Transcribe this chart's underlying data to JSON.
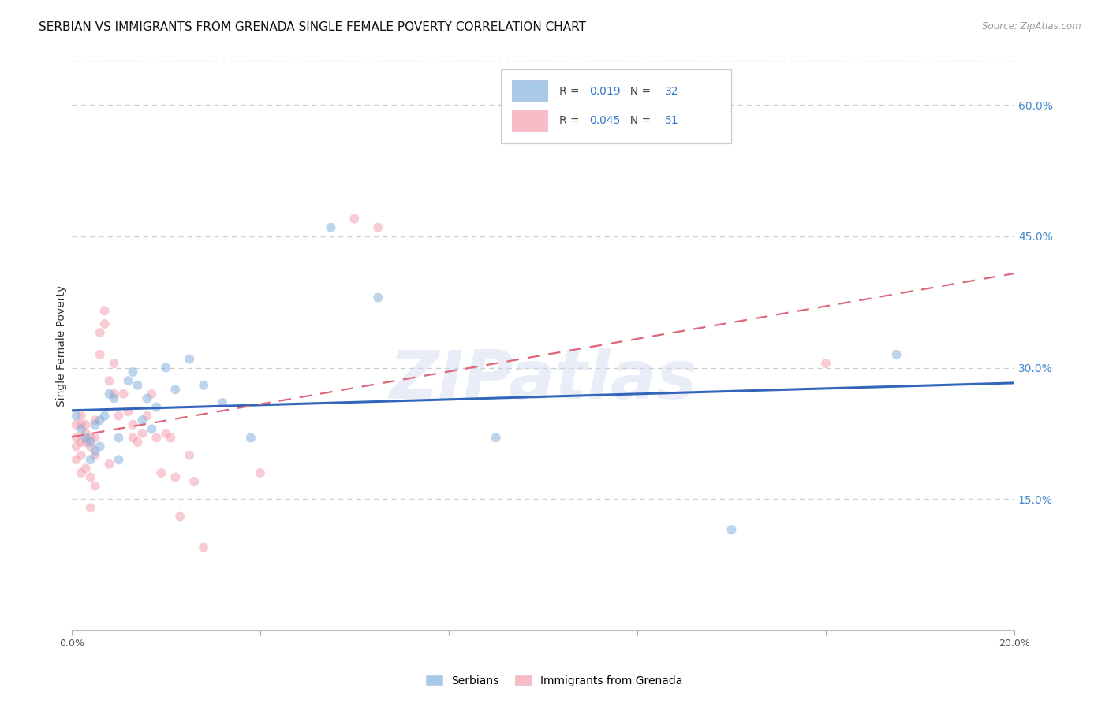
{
  "title": "SERBIAN VS IMMIGRANTS FROM GRENADA SINGLE FEMALE POVERTY CORRELATION CHART",
  "source": "Source: ZipAtlas.com",
  "ylabel": "Single Female Poverty",
  "xlim": [
    0.0,
    0.2
  ],
  "ylim": [
    0.0,
    0.65
  ],
  "xtick_positions": [
    0.0,
    0.04,
    0.08,
    0.12,
    0.16,
    0.2
  ],
  "xtick_labels": [
    "0.0%",
    "",
    "",
    "",
    "",
    "20.0%"
  ],
  "ytick_positions": [
    0.15,
    0.3,
    0.45,
    0.6
  ],
  "ytick_labels": [
    "15.0%",
    "30.0%",
    "45.0%",
    "60.0%"
  ],
  "watermark": "ZIPatlas",
  "serbian_R": "0.019",
  "serbian_N": "32",
  "grenada_R": "0.045",
  "grenada_N": "51",
  "serbian_x": [
    0.001,
    0.002,
    0.003,
    0.004,
    0.004,
    0.005,
    0.005,
    0.006,
    0.006,
    0.007,
    0.008,
    0.009,
    0.01,
    0.01,
    0.012,
    0.013,
    0.014,
    0.015,
    0.016,
    0.017,
    0.018,
    0.02,
    0.022,
    0.025,
    0.028,
    0.032,
    0.038,
    0.055,
    0.065,
    0.09,
    0.14,
    0.175
  ],
  "serbian_y": [
    0.245,
    0.23,
    0.22,
    0.215,
    0.195,
    0.235,
    0.205,
    0.24,
    0.21,
    0.245,
    0.27,
    0.265,
    0.22,
    0.195,
    0.285,
    0.295,
    0.28,
    0.24,
    0.265,
    0.23,
    0.255,
    0.3,
    0.275,
    0.31,
    0.28,
    0.26,
    0.22,
    0.46,
    0.38,
    0.22,
    0.115,
    0.315
  ],
  "grenada_x": [
    0.001,
    0.001,
    0.001,
    0.001,
    0.002,
    0.002,
    0.002,
    0.002,
    0.002,
    0.003,
    0.003,
    0.003,
    0.003,
    0.004,
    0.004,
    0.004,
    0.004,
    0.005,
    0.005,
    0.005,
    0.005,
    0.006,
    0.006,
    0.007,
    0.007,
    0.008,
    0.008,
    0.009,
    0.009,
    0.01,
    0.011,
    0.012,
    0.013,
    0.013,
    0.014,
    0.015,
    0.016,
    0.017,
    0.018,
    0.019,
    0.02,
    0.021,
    0.022,
    0.023,
    0.025,
    0.026,
    0.028,
    0.04,
    0.06,
    0.065,
    0.16
  ],
  "grenada_y": [
    0.235,
    0.22,
    0.21,
    0.195,
    0.245,
    0.235,
    0.215,
    0.2,
    0.18,
    0.235,
    0.225,
    0.215,
    0.185,
    0.22,
    0.21,
    0.175,
    0.14,
    0.24,
    0.22,
    0.2,
    0.165,
    0.34,
    0.315,
    0.365,
    0.35,
    0.285,
    0.19,
    0.305,
    0.27,
    0.245,
    0.27,
    0.25,
    0.235,
    0.22,
    0.215,
    0.225,
    0.245,
    0.27,
    0.22,
    0.18,
    0.225,
    0.22,
    0.175,
    0.13,
    0.2,
    0.17,
    0.095,
    0.18,
    0.47,
    0.46,
    0.305
  ],
  "serbian_color": "#7aaddd",
  "grenada_color": "#f599aa",
  "serbian_line_color": "#3366bb",
  "grenada_line_color": "#dd6677",
  "point_size": 75,
  "point_alpha": 0.5,
  "grid_color": "#cccccc",
  "background_color": "#ffffff",
  "title_fontsize": 11,
  "axis_label_fontsize": 10,
  "tick_fontsize": 9,
  "right_tick_color": "#4488cc",
  "accent_color": "#3377cc",
  "label_dark": "#444444"
}
